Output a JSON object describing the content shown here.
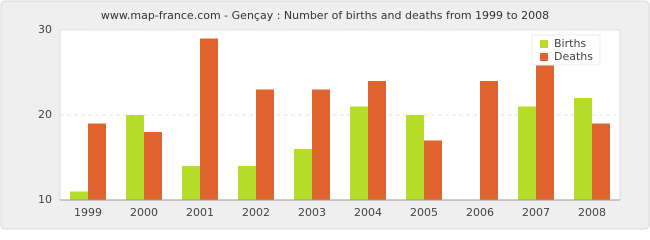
{
  "chart_data": {
    "type": "bar",
    "title": "www.map-france.com - Gençay : Number of births and deaths from 1999 to 2008",
    "categories": [
      "1999",
      "2000",
      "2001",
      "2002",
      "2003",
      "2004",
      "2005",
      "2006",
      "2007",
      "2008"
    ],
    "series": [
      {
        "name": "Births",
        "color": "#b5dc28",
        "values": [
          11,
          20,
          14,
          14,
          16,
          21,
          20,
          10,
          21,
          22
        ]
      },
      {
        "name": "Deaths",
        "color": "#e0642e",
        "values": [
          19,
          18,
          29,
          23,
          23,
          24,
          17,
          24,
          26,
          19
        ]
      }
    ],
    "ylim": [
      10,
      30
    ],
    "yticks": [
      10,
      20,
      30
    ],
    "grid": true,
    "legend": "top-right"
  }
}
